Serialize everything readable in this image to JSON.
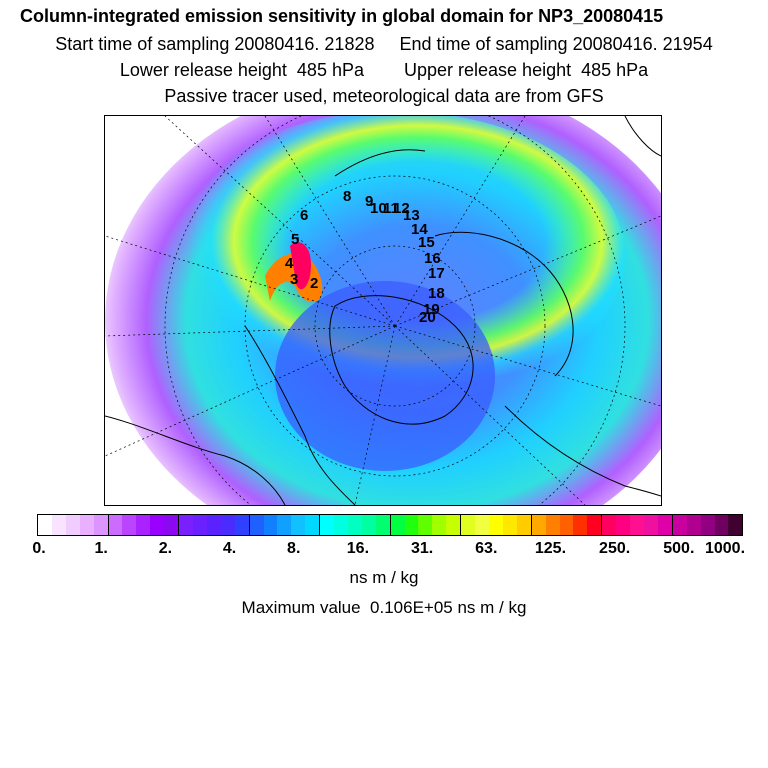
{
  "header": {
    "title": "Column-integrated emission sensitivity in global domain for NP3_20080415",
    "sampling": "Start time of sampling 20080416. 21828     End time of sampling 20080416. 21954",
    "release": "Lower release height  485 hPa        Upper release height  485 hPa",
    "tracer": "Passive tracer used, meteorological data are from GFS"
  },
  "map": {
    "projection": "polar stereographic (north pole)",
    "trajectory_labels": [
      "2",
      "3",
      "4",
      "5",
      "6",
      "8",
      "9",
      "10",
      "11",
      "12",
      "13",
      "14",
      "15",
      "16",
      "17",
      "18",
      "19",
      "20"
    ]
  },
  "colorbar": {
    "tick_labels": [
      "0.",
      "1.",
      "2.",
      "4.",
      "8.",
      "16.",
      "31.",
      "63.",
      "125.",
      "250.",
      "500.",
      "1000."
    ],
    "colors": [
      "#ffffff",
      "#f8e4ff",
      "#f0ccff",
      "#e8b0ff",
      "#dc94ff",
      "#cc6cff",
      "#bb44ff",
      "#aa22ff",
      "#9a00ff",
      "#8c08f0",
      "#7a20ff",
      "#6a20ff",
      "#5a22ff",
      "#4a2cff",
      "#3040ff",
      "#2060ff",
      "#1080ff",
      "#10a0ff",
      "#10c0ff",
      "#00d8ff",
      "#00ffff",
      "#00ffe0",
      "#00ffc0",
      "#00ffa0",
      "#00ff70",
      "#00ff40",
      "#20ff10",
      "#60ff00",
      "#a0ff00",
      "#c8ff00",
      "#e0ff20",
      "#f0ff40",
      "#ffff00",
      "#ffe800",
      "#ffcc00",
      "#ffa800",
      "#ff8000",
      "#ff6000",
      "#ff3000",
      "#ff0020",
      "#ff0060",
      "#ff0080",
      "#ff1090",
      "#f010a0",
      "#e000a8",
      "#c800a0",
      "#b00090",
      "#900080",
      "#700060",
      "#400030"
    ]
  },
  "units": "ns m / kg",
  "max_value": "Maximum value  0.106E+05 ns m / kg"
}
